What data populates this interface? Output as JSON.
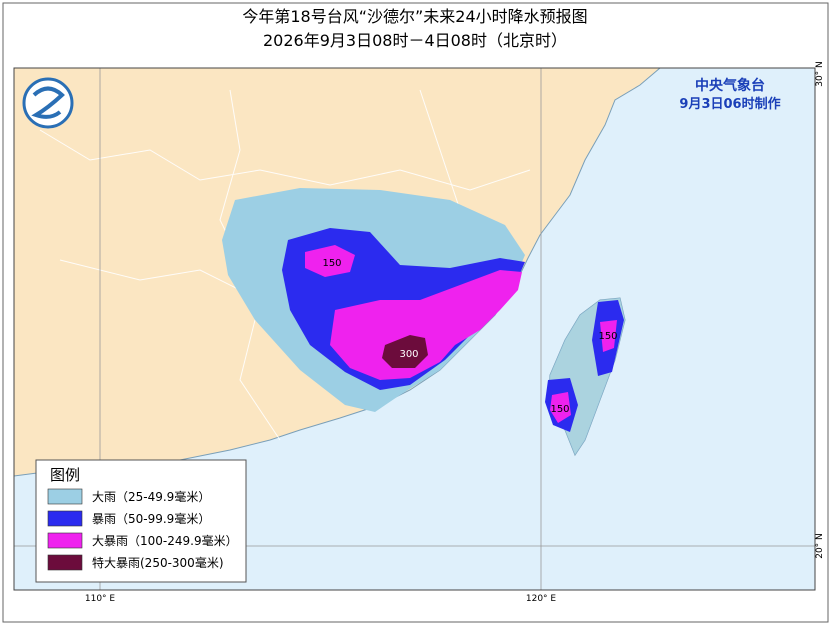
{
  "header": {
    "title": "今年第18号台风“沙德尔”未来24小时降水预报图",
    "subtitle": "2026年9月3日08时－4日08时（北京时）"
  },
  "issuer": {
    "agency": "中央气象台",
    "issued": "9月3日06时制作"
  },
  "legend": {
    "title": "图例",
    "items": [
      {
        "label": "大雨（25-49.9毫米）",
        "color": "#9ccfe4"
      },
      {
        "label": "暴雨（50-99.9毫米）",
        "color": "#2b2bef"
      },
      {
        "label": "大暴雨（100-249.9毫米）",
        "color": "#ef22ee"
      },
      {
        "label": "特大暴雨(250-300毫米)",
        "color": "#6c0c3c"
      }
    ]
  },
  "contour_labels": [
    "150",
    "150",
    "150",
    "300"
  ],
  "grid_labels": {
    "lon": [
      "110° E",
      "120° E"
    ],
    "lat": [
      "30° N",
      "20° N"
    ]
  }
}
